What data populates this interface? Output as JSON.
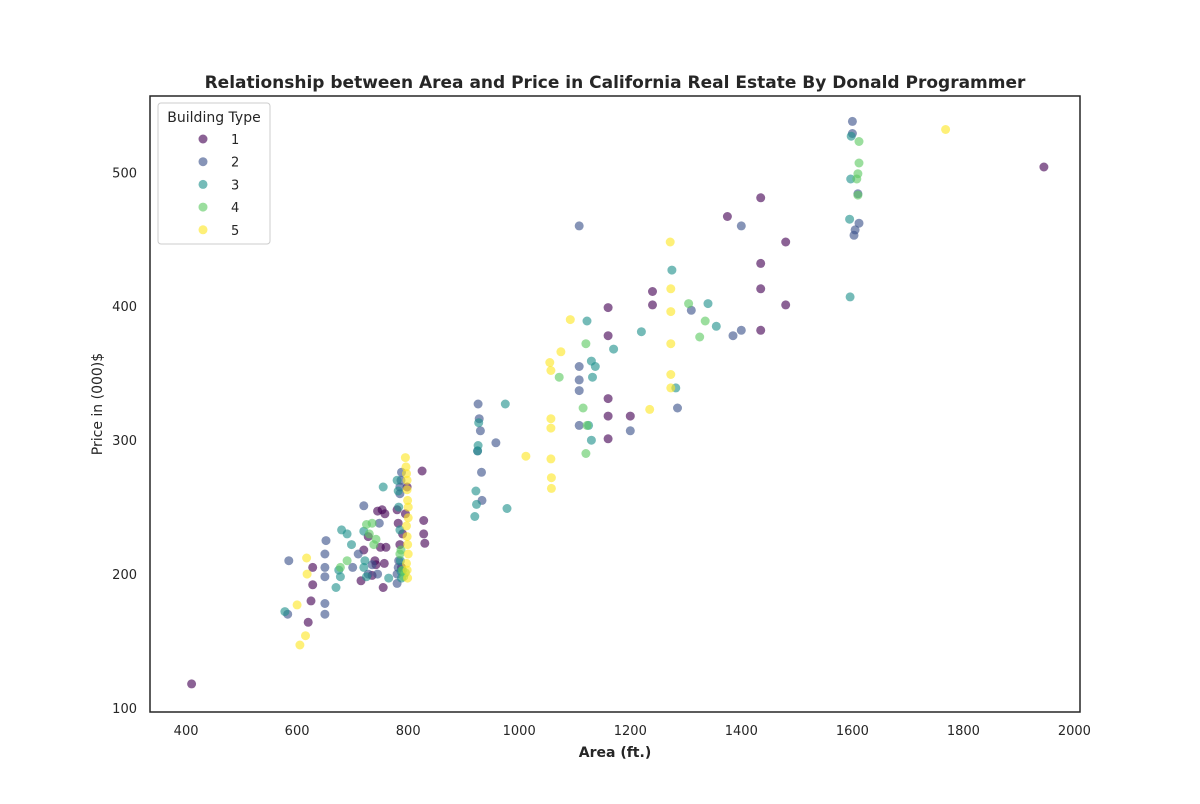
{
  "chart_data": {
    "type": "scatter",
    "title": "Relationship between Area and Price in California Real Estate By Donald Programmer",
    "xlabel": "Area (ft.)",
    "ylabel": "Price in (000)$",
    "xlim": [
      335,
      2010
    ],
    "ylim": [
      97,
      557
    ],
    "xticks": [
      400,
      600,
      800,
      1000,
      1200,
      1400,
      1600,
      1800,
      2000
    ],
    "yticks": [
      100,
      200,
      300,
      400,
      500
    ],
    "grid": false,
    "legend": {
      "title": "Building Type",
      "placement": "top-left"
    },
    "marker_alpha": 0.62,
    "series": [
      {
        "name": "1",
        "color": "#440154",
        "points": [
          [
            410,
            118
          ],
          [
            620,
            164
          ],
          [
            625,
            180
          ],
          [
            628,
            192
          ],
          [
            628,
            205
          ],
          [
            715,
            195
          ],
          [
            720,
            218
          ],
          [
            728,
            228
          ],
          [
            735,
            199
          ],
          [
            740,
            210
          ],
          [
            742,
            207
          ],
          [
            745,
            247
          ],
          [
            750,
            220
          ],
          [
            753,
            248
          ],
          [
            755,
            190
          ],
          [
            757,
            208
          ],
          [
            758,
            245
          ],
          [
            760,
            220
          ],
          [
            780,
            248
          ],
          [
            782,
            238
          ],
          [
            785,
            222
          ],
          [
            788,
            205
          ],
          [
            790,
            230
          ],
          [
            795,
            245
          ],
          [
            798,
            265
          ],
          [
            825,
            277
          ],
          [
            828,
            240
          ],
          [
            828,
            230
          ],
          [
            830,
            223
          ],
          [
            1160,
            399
          ],
          [
            1160,
            378
          ],
          [
            1160,
            331
          ],
          [
            1160,
            318
          ],
          [
            1160,
            301
          ],
          [
            1200,
            318
          ],
          [
            1240,
            401
          ],
          [
            1240,
            411
          ],
          [
            1375,
            467
          ],
          [
            1435,
            481
          ],
          [
            1435,
            432
          ],
          [
            1435,
            413
          ],
          [
            1435,
            382
          ],
          [
            1480,
            448
          ],
          [
            1480,
            401
          ],
          [
            1945,
            504
          ]
        ]
      },
      {
        "name": "2",
        "color": "#3b528b",
        "points": [
          [
            583,
            170
          ],
          [
            585,
            210
          ],
          [
            650,
            170
          ],
          [
            650,
            178
          ],
          [
            650,
            198
          ],
          [
            650,
            205
          ],
          [
            650,
            215
          ],
          [
            652,
            225
          ],
          [
            700,
            205
          ],
          [
            710,
            215
          ],
          [
            720,
            251
          ],
          [
            728,
            200
          ],
          [
            735,
            207
          ],
          [
            745,
            200
          ],
          [
            748,
            238
          ],
          [
            780,
            193
          ],
          [
            780,
            200
          ],
          [
            782,
            205
          ],
          [
            783,
            210
          ],
          [
            785,
            260
          ],
          [
            785,
            265
          ],
          [
            787,
            270
          ],
          [
            788,
            276
          ],
          [
            925,
            292
          ],
          [
            926,
            327
          ],
          [
            928,
            316
          ],
          [
            930,
            307
          ],
          [
            932,
            276
          ],
          [
            933,
            255
          ],
          [
            958,
            298
          ],
          [
            1108,
            460
          ],
          [
            1108,
            355
          ],
          [
            1108,
            337
          ],
          [
            1108,
            345
          ],
          [
            1108,
            311
          ],
          [
            1200,
            307
          ],
          [
            1285,
            324
          ],
          [
            1310,
            397
          ],
          [
            1385,
            378
          ],
          [
            1400,
            382
          ],
          [
            1400,
            460
          ],
          [
            1600,
            538
          ],
          [
            1600,
            529
          ],
          [
            1603,
            453
          ],
          [
            1605,
            457
          ],
          [
            1610,
            484
          ],
          [
            1612,
            462
          ]
        ]
      },
      {
        "name": "3",
        "color": "#21918c",
        "points": [
          [
            578,
            172
          ],
          [
            670,
            190
          ],
          [
            675,
            203
          ],
          [
            678,
            198
          ],
          [
            680,
            233
          ],
          [
            690,
            230
          ],
          [
            698,
            222
          ],
          [
            720,
            205
          ],
          [
            720,
            232
          ],
          [
            722,
            210
          ],
          [
            725,
            198
          ],
          [
            755,
            265
          ],
          [
            765,
            197
          ],
          [
            780,
            270
          ],
          [
            782,
            262
          ],
          [
            783,
            250
          ],
          [
            785,
            233
          ],
          [
            786,
            210
          ],
          [
            787,
            202
          ],
          [
            788,
            197
          ],
          [
            920,
            243
          ],
          [
            922,
            262
          ],
          [
            923,
            252
          ],
          [
            925,
            292
          ],
          [
            926,
            296
          ],
          [
            927,
            313
          ],
          [
            975,
            327
          ],
          [
            978,
            249
          ],
          [
            1122,
            389
          ],
          [
            1125,
            311
          ],
          [
            1130,
            300
          ],
          [
            1130,
            359
          ],
          [
            1132,
            347
          ],
          [
            1137,
            355
          ],
          [
            1170,
            368
          ],
          [
            1220,
            381
          ],
          [
            1275,
            427
          ],
          [
            1282,
            339
          ],
          [
            1340,
            402
          ],
          [
            1355,
            385
          ],
          [
            1595,
            465
          ],
          [
            1596,
            407
          ],
          [
            1597,
            495
          ],
          [
            1598,
            527
          ]
        ]
      },
      {
        "name": "4",
        "color": "#5ec962",
        "points": [
          [
            678,
            205
          ],
          [
            690,
            210
          ],
          [
            725,
            237
          ],
          [
            730,
            230
          ],
          [
            735,
            238
          ],
          [
            738,
            222
          ],
          [
            742,
            226
          ],
          [
            785,
            215
          ],
          [
            787,
            218
          ],
          [
            790,
            203
          ],
          [
            792,
            198
          ],
          [
            795,
            201
          ],
          [
            1072,
            347
          ],
          [
            1115,
            324
          ],
          [
            1120,
            290
          ],
          [
            1120,
            372
          ],
          [
            1122,
            311
          ],
          [
            1305,
            402
          ],
          [
            1325,
            377
          ],
          [
            1335,
            389
          ],
          [
            1612,
            523
          ],
          [
            1612,
            507
          ],
          [
            1610,
            499
          ],
          [
            1608,
            495
          ],
          [
            1610,
            483
          ]
        ]
      },
      {
        "name": "5",
        "color": "#fde725",
        "points": [
          [
            600,
            177
          ],
          [
            605,
            147
          ],
          [
            615,
            154
          ],
          [
            617,
            212
          ],
          [
            618,
            200
          ],
          [
            795,
            287
          ],
          [
            796,
            280
          ],
          [
            797,
            275
          ],
          [
            798,
            270
          ],
          [
            798,
            263
          ],
          [
            799,
            255
          ],
          [
            800,
            250
          ],
          [
            800,
            242
          ],
          [
            797,
            236
          ],
          [
            798,
            228
          ],
          [
            799,
            222
          ],
          [
            800,
            215
          ],
          [
            797,
            208
          ],
          [
            798,
            203
          ],
          [
            799,
            197
          ],
          [
            1012,
            288
          ],
          [
            1055,
            358
          ],
          [
            1057,
            352
          ],
          [
            1057,
            316
          ],
          [
            1057,
            309
          ],
          [
            1057,
            286
          ],
          [
            1058,
            272
          ],
          [
            1058,
            264
          ],
          [
            1075,
            366
          ],
          [
            1092,
            390
          ],
          [
            1235,
            323
          ],
          [
            1272,
            448
          ],
          [
            1273,
            413
          ],
          [
            1273,
            396
          ],
          [
            1273,
            372
          ],
          [
            1273,
            349
          ],
          [
            1273,
            339
          ],
          [
            1768,
            532
          ]
        ]
      }
    ]
  }
}
